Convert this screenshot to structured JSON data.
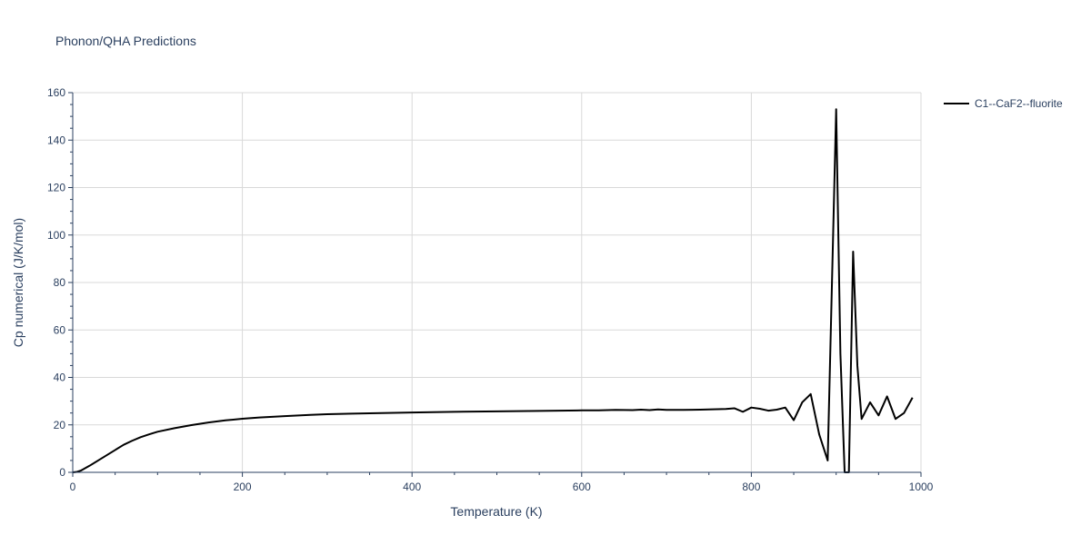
{
  "chart_data": {
    "type": "line",
    "title": "Phonon/QHA Predictions",
    "xlabel": "Temperature (K)",
    "ylabel": "Cp numerical (J/K/mol)",
    "xlim": [
      0,
      1000
    ],
    "ylim": [
      0,
      160
    ],
    "xticks": [
      0,
      200,
      400,
      600,
      800,
      1000
    ],
    "yticks": [
      0,
      20,
      40,
      60,
      80,
      100,
      120,
      140,
      160
    ],
    "grid": true,
    "legend_position": "top-right",
    "series": [
      {
        "name": "C1--CaF2--fluorite",
        "color": "#000000",
        "x": [
          0,
          5,
          10,
          20,
          30,
          40,
          50,
          60,
          70,
          80,
          90,
          100,
          120,
          140,
          160,
          180,
          200,
          220,
          250,
          280,
          300,
          350,
          400,
          450,
          500,
          550,
          600,
          620,
          640,
          660,
          670,
          680,
          690,
          700,
          720,
          740,
          760,
          770,
          780,
          790,
          800,
          810,
          820,
          830,
          840,
          850,
          860,
          870,
          880,
          890,
          900,
          905,
          910,
          915,
          920,
          925,
          930,
          940,
          950,
          960,
          970,
          980,
          990
        ],
        "y": [
          0,
          0.2,
          0.8,
          2.8,
          5.0,
          7.2,
          9.4,
          11.6,
          13.3,
          14.8,
          16.0,
          17.1,
          18.6,
          19.9,
          21.0,
          21.9,
          22.6,
          23.1,
          23.7,
          24.2,
          24.5,
          24.9,
          25.2,
          25.5,
          25.7,
          25.9,
          26.1,
          26.1,
          26.3,
          26.2,
          26.4,
          26.2,
          26.5,
          26.3,
          26.3,
          26.4,
          26.6,
          26.7,
          27.0,
          25.5,
          27.3,
          26.8,
          26.0,
          26.4,
          27.3,
          22.0,
          29.5,
          33.0,
          16.0,
          5.0,
          153.0,
          50.0,
          0,
          0,
          93.0,
          45.0,
          22.5,
          29.5,
          24.0,
          32.0,
          22.5,
          25.0,
          31.5
        ]
      }
    ]
  }
}
